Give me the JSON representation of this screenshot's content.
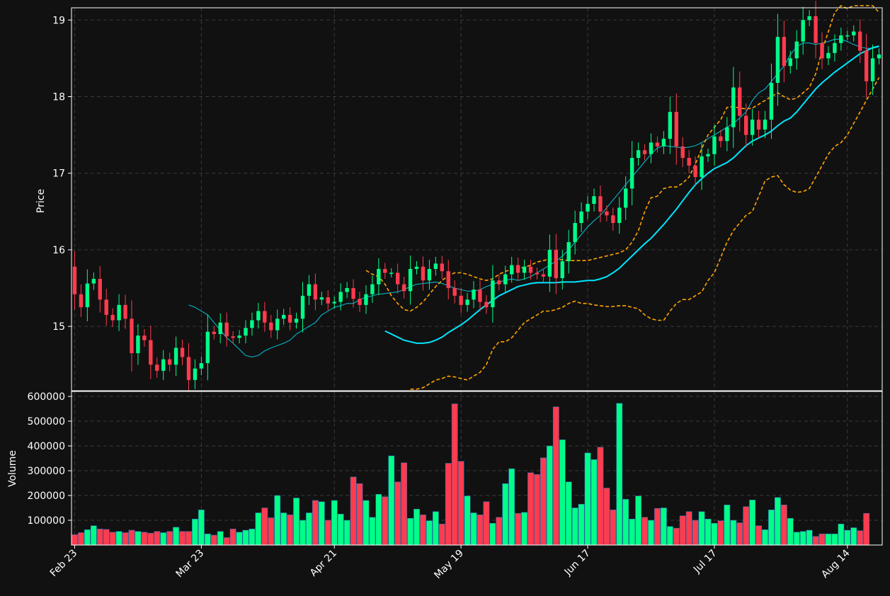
{
  "chart_data": [
    {
      "type": "candlestick",
      "panel": "price",
      "ylabel": "Price",
      "ylim": [
        14.16,
        19.16
      ],
      "yticks": [
        15,
        16,
        17,
        18,
        19
      ],
      "grid": true,
      "date_range": [
        "Feb 23",
        "Aug 20"
      ],
      "xtick_labels": [
        "Feb 23",
        "Mar 23",
        "Apr 21",
        "May 19",
        "Jun 17",
        "Jul 17",
        "Aug 14"
      ],
      "series": [
        {
          "name": "",
          "kind": "candles",
          "close": [
            15.42,
            15.25,
            15.56,
            15.62,
            15.35,
            15.15,
            15.08,
            15.28,
            15.1,
            14.65,
            14.88,
            14.82,
            14.5,
            14.42,
            14.57,
            14.5,
            14.72,
            14.6,
            14.3,
            14.45,
            14.52,
            14.93,
            14.9,
            15.05,
            14.87,
            14.85,
            14.88,
            14.98,
            15.08,
            15.2,
            15.05,
            14.95,
            15.1,
            15.15,
            15.05,
            15.1,
            15.4,
            15.55,
            15.35,
            15.38,
            15.3,
            15.32,
            15.45,
            15.5,
            15.36,
            15.28,
            15.42,
            15.55,
            15.75,
            15.7,
            15.7,
            15.55,
            15.46,
            15.75,
            15.78,
            15.6,
            15.75,
            15.82,
            15.72,
            15.5,
            15.4,
            15.28,
            15.35,
            15.48,
            15.32,
            15.25,
            15.6,
            15.55,
            15.68,
            15.8,
            15.7,
            15.78,
            15.7,
            15.68,
            15.65,
            16.0,
            15.63,
            15.85,
            16.1,
            16.35,
            16.5,
            16.6,
            16.7,
            16.5,
            16.45,
            16.35,
            16.55,
            16.8,
            17.2,
            17.3,
            17.25,
            17.4,
            17.35,
            17.45,
            17.8,
            17.35,
            17.2,
            17.1,
            16.95,
            17.22,
            17.25,
            17.48,
            17.42,
            17.6,
            18.12,
            17.75,
            17.5,
            17.7,
            17.57,
            17.7,
            18.18,
            18.78,
            18.4,
            18.5,
            18.72,
            19.0,
            19.05,
            18.7,
            18.5,
            18.57,
            18.7,
            18.8,
            18.8,
            18.85,
            18.6,
            18.2,
            18.5,
            18.55
          ]
        },
        {
          "name": "",
          "kind": "line",
          "color": "#00e5ff",
          "window": "short",
          "values": [
            15.28,
            15.25,
            15.2,
            15.15,
            15.05,
            14.95,
            14.85,
            14.78,
            14.7,
            14.62,
            14.6,
            14.62,
            14.68,
            14.72,
            14.75,
            14.78,
            14.82,
            14.9,
            14.95,
            15.0,
            15.05,
            15.15,
            15.2,
            15.25,
            15.27,
            15.3,
            15.3,
            15.35,
            15.38,
            15.4,
            15.42,
            15.43,
            15.44,
            15.45,
            15.48,
            15.52,
            15.55,
            15.56,
            15.57,
            15.58,
            15.56,
            15.53,
            15.5,
            15.48,
            15.46,
            15.46,
            15.48,
            15.52,
            15.55,
            15.58,
            15.6,
            15.62,
            15.6,
            15.62,
            15.65,
            15.7,
            15.75,
            15.8,
            15.85,
            15.92,
            16.0,
            16.1,
            16.2,
            16.3,
            16.38,
            16.45,
            16.55,
            16.65,
            16.75,
            16.85,
            16.95,
            17.05,
            17.15,
            17.25,
            17.33,
            17.36,
            17.35,
            17.34,
            17.33,
            17.34,
            17.36,
            17.4,
            17.45,
            17.5,
            17.55,
            17.6,
            17.65,
            17.72,
            17.8,
            17.95,
            18.05,
            18.1,
            18.2,
            18.3,
            18.4,
            18.55,
            18.65,
            18.7,
            18.7,
            18.68,
            18.7,
            18.72,
            18.75,
            18.75,
            18.72,
            18.68,
            18.65,
            18.63,
            18.63,
            18.65
          ]
        },
        {
          "name": "",
          "kind": "line",
          "color": "#00e5ff",
          "window": "long",
          "values": [
            14.94,
            14.9,
            14.86,
            14.82,
            14.8,
            14.78,
            14.78,
            14.79,
            14.82,
            14.86,
            14.92,
            14.97,
            15.02,
            15.08,
            15.15,
            15.22,
            15.28,
            15.34,
            15.4,
            15.44,
            15.48,
            15.52,
            15.54,
            15.56,
            15.57,
            15.57,
            15.57,
            15.57,
            15.58,
            15.58,
            15.58,
            15.59,
            15.6,
            15.6,
            15.62,
            15.65,
            15.7,
            15.76,
            15.84,
            15.92,
            16.0,
            16.08,
            16.15,
            16.24,
            16.33,
            16.43,
            16.53,
            16.64,
            16.75,
            16.85,
            16.93,
            17.0,
            17.06,
            17.1,
            17.14,
            17.2,
            17.28,
            17.36,
            17.42,
            17.46,
            17.5,
            17.55,
            17.62,
            17.68,
            17.72,
            17.8,
            17.9,
            18.0,
            18.1,
            18.18,
            18.25,
            18.32,
            18.38,
            18.44,
            18.5,
            18.56,
            18.6,
            18.64,
            18.66
          ]
        },
        {
          "name": "",
          "kind": "band-upper",
          "color": "#ffa500",
          "values": [
            15.73,
            15.68,
            15.65,
            15.55,
            15.4,
            15.3,
            15.22,
            15.2,
            15.25,
            15.32,
            15.42,
            15.52,
            15.6,
            15.66,
            15.7,
            15.7,
            15.68,
            15.65,
            15.62,
            15.6,
            15.62,
            15.68,
            15.72,
            15.74,
            15.76,
            15.77,
            15.8,
            15.84,
            15.86,
            15.88,
            15.88,
            15.87,
            15.86,
            15.86,
            15.86,
            15.86,
            15.88,
            15.9,
            15.92,
            15.94,
            15.96,
            16.0,
            16.1,
            16.25,
            16.5,
            16.68,
            16.7,
            16.8,
            16.82,
            16.82,
            16.87,
            16.95,
            17.12,
            17.32,
            17.5,
            17.6,
            17.7,
            17.86,
            17.87,
            17.85,
            17.84,
            17.85,
            17.9,
            17.95,
            18.0,
            18.05,
            18.0,
            17.96,
            17.98,
            18.05,
            18.12,
            18.3,
            18.6,
            18.85,
            19.1,
            19.25,
            19.15,
            19.3,
            19.3,
            19.25,
            19.2,
            19.1
          ]
        },
        {
          "name": "",
          "kind": "band-lower",
          "color": "#ffa500",
          "values": [
            14.18,
            14.18,
            14.2,
            14.25,
            14.3,
            14.32,
            14.35,
            14.34,
            14.32,
            14.3,
            14.35,
            14.4,
            14.5,
            14.7,
            14.8,
            14.8,
            14.85,
            14.95,
            15.05,
            15.1,
            15.15,
            15.2,
            15.2,
            15.22,
            15.25,
            15.3,
            15.33,
            15.3,
            15.3,
            15.28,
            15.27,
            15.26,
            15.26,
            15.27,
            15.27,
            15.25,
            15.23,
            15.15,
            15.1,
            15.08,
            15.08,
            15.2,
            15.3,
            15.35,
            15.35,
            15.4,
            15.45,
            15.6,
            15.7,
            15.9,
            16.1,
            16.25,
            16.35,
            16.45,
            16.5,
            16.7,
            16.9,
            16.95,
            16.97,
            16.85,
            16.78,
            16.75,
            16.76,
            16.8,
            16.95,
            17.1,
            17.25,
            17.35,
            17.4,
            17.5,
            17.65,
            17.8,
            17.95,
            18.1,
            18.25
          ]
        }
      ]
    },
    {
      "type": "bar",
      "panel": "volume",
      "ylabel": "Volume",
      "ylim": [
        0,
        620000
      ],
      "yticks": [
        100000,
        200000,
        300000,
        400000,
        500000,
        600000
      ],
      "grid": true,
      "colors": {
        "up": "#00ff88",
        "down": "#ff3b4e"
      },
      "values": [
        42000,
        50000,
        62000,
        78000,
        65000,
        63000,
        52000,
        55000,
        50000,
        60000,
        55000,
        52000,
        48000,
        55000,
        50000,
        55000,
        72000,
        55000,
        55000,
        105000,
        142000,
        45000,
        40000,
        55000,
        30000,
        65000,
        52000,
        60000,
        65000,
        130000,
        150000,
        110000,
        200000,
        130000,
        122000,
        190000,
        100000,
        130000,
        180000,
        175000,
        100000,
        180000,
        125000,
        100000,
        275000,
        248000,
        180000,
        112000,
        205000,
        195000,
        360000,
        255000,
        332000,
        108000,
        145000,
        122000,
        98000,
        135000,
        85000,
        330000,
        570000,
        338000,
        198000,
        130000,
        122000,
        175000,
        88000,
        112000,
        248000,
        308000,
        128000,
        132000,
        292000,
        285000,
        352000,
        400000,
        558000,
        425000,
        255000,
        150000,
        165000,
        372000,
        345000,
        395000,
        230000,
        142000,
        572000,
        185000,
        105000,
        198000,
        112000,
        100000,
        148000,
        150000,
        75000,
        68000,
        118000,
        135000,
        100000,
        135000,
        105000,
        88000,
        98000,
        162000,
        100000,
        90000,
        155000,
        182000,
        78000,
        62000,
        142000,
        192000,
        162000,
        108000,
        52000,
        55000,
        60000,
        35000,
        45000,
        45000,
        45000,
        85000,
        60000,
        70000,
        58000,
        128000
      ]
    }
  ]
}
